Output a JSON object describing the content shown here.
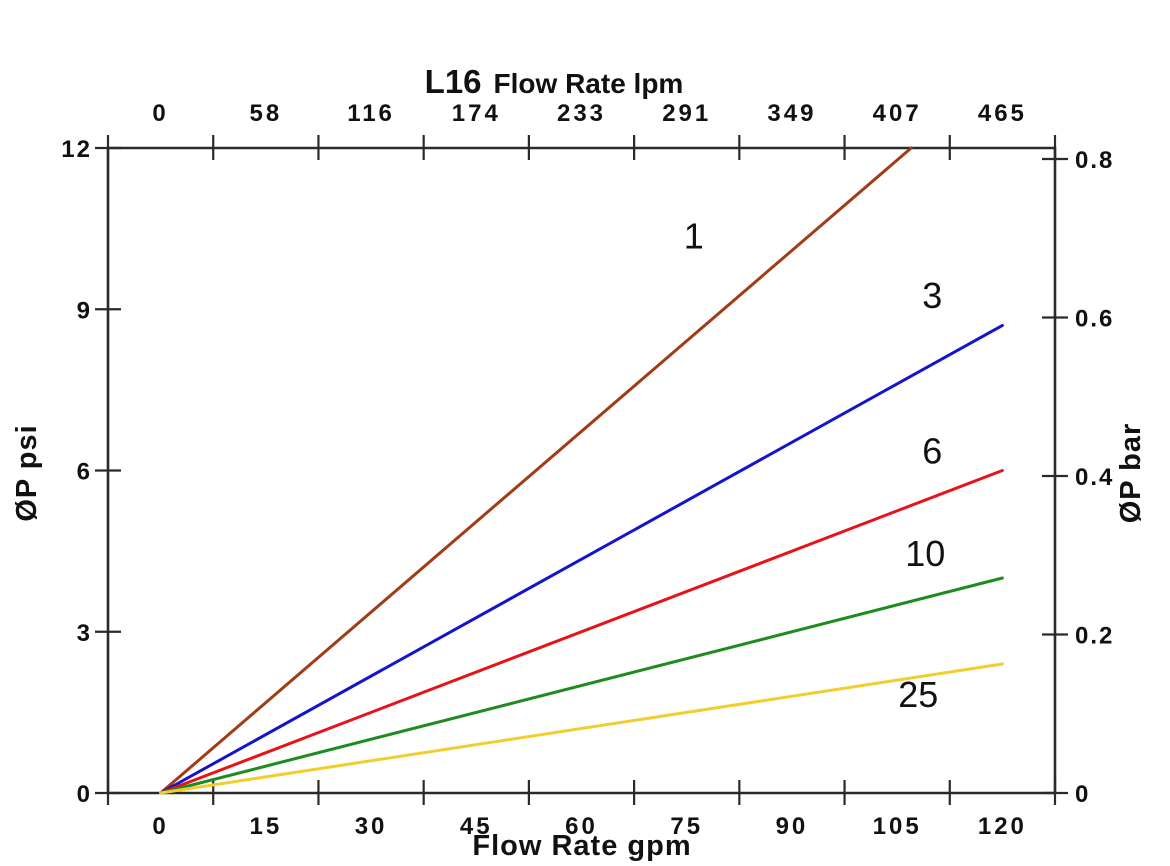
{
  "chart_data": {
    "type": "line",
    "title": "L16 Flow Rate lpm",
    "title_model": "L16",
    "title_rest": "Flow Rate lpm",
    "xlabel_bottom": "Flow Rate gpm",
    "ylabel_left": "ØP psi",
    "ylabel_right": "ØP bar",
    "grid": false,
    "legend": "inline-labels",
    "x_bottom": {
      "unit": "gpm",
      "ticks": [
        0,
        15,
        30,
        45,
        60,
        75,
        90,
        105,
        120
      ],
      "range": [
        0,
        120
      ]
    },
    "x_top": {
      "unit": "lpm",
      "ticks": [
        0,
        58,
        116,
        174,
        233,
        291,
        349,
        407,
        465
      ],
      "range": [
        0,
        465
      ]
    },
    "y_left": {
      "unit": "psi",
      "ticks": [
        0,
        3,
        6,
        9,
        12
      ],
      "range": [
        0,
        12
      ]
    },
    "y_right": {
      "unit": "bar",
      "ticks": [
        0,
        0.2,
        0.4,
        0.6,
        0.8
      ],
      "range": [
        0,
        0.8
      ]
    },
    "series": [
      {
        "name": "1",
        "color": "#A03C16",
        "points": [
          [
            0,
            0
          ],
          [
            107,
            12
          ]
        ],
        "label_pos": {
          "gpm": 76,
          "psi": 10.35
        }
      },
      {
        "name": "3",
        "color": "#1414CC",
        "points": [
          [
            0,
            0
          ],
          [
            120,
            8.7
          ]
        ],
        "label_pos": {
          "gpm": 110,
          "psi": 9.25
        }
      },
      {
        "name": "6",
        "color": "#E91219",
        "points": [
          [
            0,
            0
          ],
          [
            120,
            6.0
          ]
        ],
        "label_pos": {
          "gpm": 110,
          "psi": 6.35
        }
      },
      {
        "name": "10",
        "color": "#1F8A1F",
        "points": [
          [
            0,
            0
          ],
          [
            120,
            4.0
          ]
        ],
        "label_pos": {
          "gpm": 109,
          "psi": 4.45
        }
      },
      {
        "name": "25",
        "color": "#F0CE2E",
        "points": [
          [
            0,
            0
          ],
          [
            120,
            2.4
          ]
        ],
        "label_pos": {
          "gpm": 108,
          "psi": 1.82
        }
      }
    ]
  }
}
